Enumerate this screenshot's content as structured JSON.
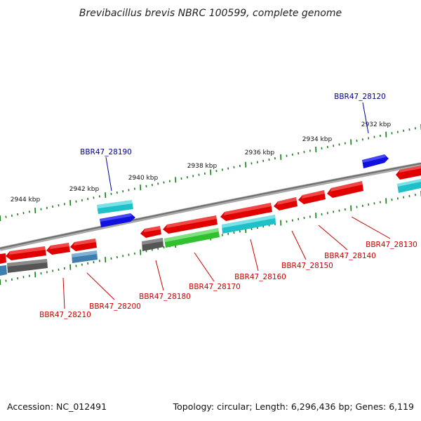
{
  "title": "Brevibacillus brevis NBRC 100599, complete genome",
  "footer": {
    "accession": "Accession: NC_012491",
    "topology": "Topology: circular; Length: 6,296,436 bp; Genes: 6,119"
  },
  "colors": {
    "backbone": "#888888",
    "red": "#e00000",
    "cyan": "#20c0c8",
    "blue": "#1010e0",
    "green": "#30c030",
    "gray": "#555555",
    "steel": "#3f7fb0",
    "tick": "#1a7a1a",
    "label_red": "#cc0000",
    "label_blue": "#00008b"
  },
  "ruler_marks": [
    "2932 kbp",
    "2934 kbp",
    "2936 kbp",
    "2938 kbp",
    "2940 kbp",
    "2942 kbp",
    "2944 kbp"
  ],
  "genes_labeled_top": [
    {
      "name": "BBR47_28120",
      "color": "blue"
    },
    {
      "name": "BBR47_28190",
      "color": "blue"
    }
  ],
  "genes_labeled_bottom": [
    {
      "name": "BBR47_28130"
    },
    {
      "name": "BBR47_28140"
    },
    {
      "name": "BBR47_28150"
    },
    {
      "name": "BBR47_28160"
    },
    {
      "name": "BBR47_28170"
    },
    {
      "name": "BBR47_28180"
    },
    {
      "name": "BBR47_28200"
    },
    {
      "name": "BBR47_28210"
    }
  ]
}
